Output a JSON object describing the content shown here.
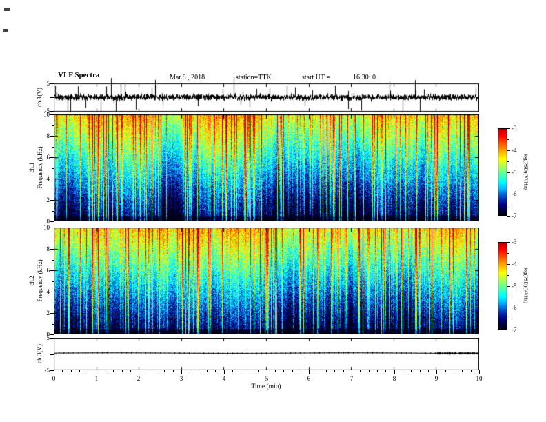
{
  "header": {
    "title": "VLF Spectra",
    "date": "Mar.8 , 2018",
    "station": "station=TTK",
    "start_ut_label": "start UT =",
    "start_ut_value": "16:30: 0"
  },
  "xaxis": {
    "label": "Time (min)",
    "range": [
      0,
      10
    ],
    "ticks": [
      "0",
      "1",
      "2",
      "3",
      "4",
      "5",
      "6",
      "7",
      "8",
      "9",
      "10"
    ]
  },
  "colorbar": {
    "label": "log(PSD)(V²/Hz)",
    "range": [
      -7,
      -3
    ],
    "ticks": [
      "-3",
      "-4",
      "-5",
      "-6",
      "-7"
    ],
    "colormap": "jet"
  },
  "panels": {
    "ch1_wave": {
      "ylabel": "ch.1(V)",
      "ylim": [
        -5,
        5
      ],
      "yticks": [
        "5",
        "-5"
      ]
    },
    "ch1_spec": {
      "channel": "ch.1",
      "ylabel": "Frequency (kHz)",
      "ylim": [
        0,
        10
      ],
      "yticks": [
        "10",
        "8",
        "6",
        "4",
        "2",
        "0"
      ]
    },
    "ch2_spec": {
      "channel": "ch.2",
      "ylabel": "Frequency (kHz)",
      "ylim": [
        0,
        10
      ],
      "yticks": [
        "10",
        "8",
        "6",
        "4",
        "2",
        "0"
      ]
    },
    "ch3_wave": {
      "ylabel": "ch.3(V)",
      "ylim": [
        -5,
        5
      ],
      "yticks": [
        "5",
        "-5"
      ]
    }
  },
  "chart_data": [
    {
      "type": "line",
      "name": "ch.1 waveform",
      "ylabel": "ch.1(V)",
      "xlim": [
        0,
        10
      ],
      "ylim": [
        -5,
        5
      ],
      "signal": {
        "kind": "broadband-noise",
        "mean": 0,
        "typical_amplitude": 1,
        "spike_amplitude": 5,
        "description": "continuous noisy voltage trace with frequent impulsive sferic spikes reaching and overshooting ±5 V"
      }
    },
    {
      "type": "heatmap",
      "name": "ch.1 spectrogram",
      "xlabel": "Time (min)",
      "ylabel": "Frequency (kHz)",
      "xlim": [
        0,
        10
      ],
      "ylim": [
        0,
        10
      ],
      "value_label": "log(PSD)(V²/Hz)",
      "value_range": [
        -7,
        -3
      ],
      "colormap": "jet",
      "profile": [
        {
          "freq_khz": 0,
          "log_psd": -7.0
        },
        {
          "freq_khz": 1,
          "log_psd": -6.7
        },
        {
          "freq_khz": 3,
          "log_psd": -6.2
        },
        {
          "freq_khz": 5,
          "log_psd": -5.7
        },
        {
          "freq_khz": 7,
          "log_psd": -5.2
        },
        {
          "freq_khz": 9,
          "log_psd": -4.7
        },
        {
          "freq_khz": 10,
          "log_psd": -4.4
        }
      ],
      "features": "dense vertical sferic streaks spanning all frequencies; power increases with frequency; red/yellow band above ~6 kHz, black/blue band below ~2 kHz"
    },
    {
      "type": "heatmap",
      "name": "ch.2 spectrogram",
      "xlabel": "Time (min)",
      "ylabel": "Frequency (kHz)",
      "xlim": [
        0,
        10
      ],
      "ylim": [
        0,
        10
      ],
      "value_label": "log(PSD)(V²/Hz)",
      "value_range": [
        -7,
        -3
      ],
      "colormap": "jet",
      "profile": [
        {
          "freq_khz": 0,
          "log_psd": -7.0
        },
        {
          "freq_khz": 1,
          "log_psd": -6.7
        },
        {
          "freq_khz": 3,
          "log_psd": -6.2
        },
        {
          "freq_khz": 5,
          "log_psd": -5.7
        },
        {
          "freq_khz": 7,
          "log_psd": -5.2
        },
        {
          "freq_khz": 9,
          "log_psd": -4.7
        },
        {
          "freq_khz": 10,
          "log_psd": -4.4
        }
      ],
      "features": "same structure as ch.1: vertical sferic streaks, high power at high frequency, dark band near 0-2 kHz"
    },
    {
      "type": "line",
      "name": "ch.3 waveform",
      "ylabel": "ch.3(V)",
      "xlim": [
        0,
        10
      ],
      "ylim": [
        -5,
        5
      ],
      "signal": {
        "kind": "flat",
        "mean": 0.35,
        "typical_amplitude": 0.15,
        "description": "nearly flat trace slightly above zero with tiny ripple, slightly larger ripple near the right end"
      }
    }
  ]
}
